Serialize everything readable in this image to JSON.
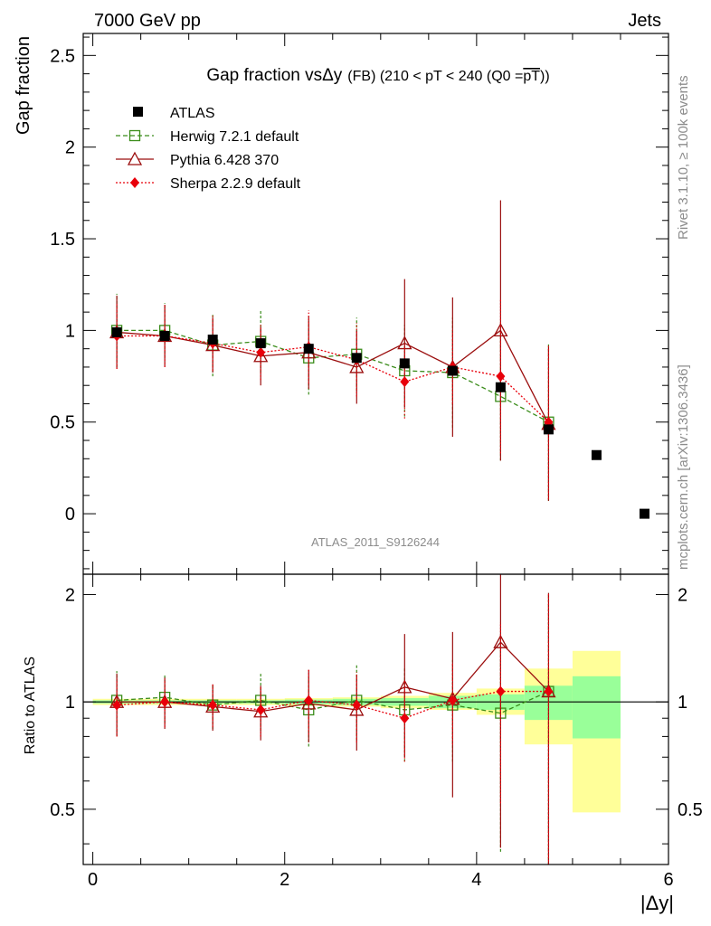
{
  "header": {
    "left_label": "7000 GeV pp",
    "right_label": "Jets",
    "side_label_top": "Rivet 3.1.10, ≥ 100k events",
    "side_label_bottom": "mcplots.cern.ch [arXiv:1306.3436]",
    "analysis_id": "ATLAS_2011_S9126244"
  },
  "chart_data": [
    {
      "type": "scatter",
      "title_main": "Gap fraction vsΔy",
      "title_sub": "(FB) (210 < pT < 240 (Q0 =",
      "title_pt": "pT",
      "title_end": "))",
      "xlabel": "|Δy|",
      "ylabel": "Gap fraction",
      "xlim": [
        -0.1,
        6.0
      ],
      "ylim": [
        -0.33,
        2.62
      ],
      "yticks": [
        0,
        0.5,
        1,
        1.5,
        2,
        2.5
      ],
      "ytick_labels": [
        "0",
        "0.5",
        "1",
        "1.5",
        "2",
        "2.5"
      ],
      "legend": [
        "ATLAS",
        "Herwig 7.2.1 default",
        "Pythia 6.428 370",
        "Sherpa 2.2.9 default"
      ],
      "series": [
        {
          "name": "ATLAS",
          "color": "#000000",
          "x": [
            0.25,
            0.75,
            1.25,
            1.75,
            2.25,
            2.75,
            3.25,
            3.75,
            4.25,
            4.75,
            5.25,
            5.75
          ],
          "y": [
            0.99,
            0.97,
            0.95,
            0.93,
            0.9,
            0.85,
            0.82,
            0.78,
            0.69,
            0.46,
            0.32,
            0.0
          ]
        },
        {
          "name": "Herwig 7.2.1 default",
          "color": "#3a8c1a",
          "x": [
            0.25,
            0.75,
            1.25,
            1.75,
            2.25,
            2.75,
            3.25,
            3.75,
            4.25,
            4.75
          ],
          "y": [
            1.0,
            1.0,
            0.92,
            0.94,
            0.85,
            0.87,
            0.78,
            0.77,
            0.64,
            0.5
          ],
          "err": [
            0.2,
            0.15,
            0.17,
            0.17,
            0.2,
            0.2,
            0.25,
            0.3,
            0.35,
            0.43
          ]
        },
        {
          "name": "Pythia 6.428 370",
          "color": "#9b0e0e",
          "x": [
            0.25,
            0.75,
            1.25,
            1.75,
            2.25,
            2.75,
            3.25,
            3.75,
            4.25,
            4.75
          ],
          "y": [
            0.99,
            0.97,
            0.92,
            0.86,
            0.88,
            0.8,
            0.93,
            0.8,
            1.0,
            0.49
          ],
          "err": [
            0.2,
            0.17,
            0.15,
            0.16,
            0.2,
            0.2,
            0.35,
            0.38,
            0.71,
            0.42
          ]
        },
        {
          "name": "Sherpa 2.2.9 default",
          "color": "#e8000b",
          "x": [
            0.25,
            0.75,
            1.25,
            1.75,
            2.25,
            2.75,
            3.25,
            3.75,
            4.25,
            4.75
          ],
          "y": [
            0.97,
            0.97,
            0.93,
            0.88,
            0.91,
            0.84,
            0.72,
            0.8,
            0.75,
            0.5
          ],
          "err": [
            0.18,
            0.17,
            0.15,
            0.15,
            0.2,
            0.2,
            0.2,
            0.2,
            0.42,
            0.42
          ]
        }
      ]
    },
    {
      "type": "scatter",
      "ylabel": "Ratio to ATLAS",
      "xlabel": "|Δy|",
      "xlim": [
        -0.1,
        6.0
      ],
      "ylim": [
        0.35,
        2.28
      ],
      "yticks": [
        0.5,
        1,
        2
      ],
      "ytick_labels": [
        "0.5",
        "1",
        "2"
      ],
      "xticks": [
        0,
        2,
        4,
        6
      ],
      "xtick_labels": [
        "0",
        "2",
        "4",
        "6"
      ],
      "bands": [
        {
          "x0": 0.0,
          "x1": 0.5,
          "inner": [
            0.99,
            1.01
          ],
          "outer": [
            0.98,
            1.02
          ]
        },
        {
          "x0": 0.5,
          "x1": 1.0,
          "inner": [
            0.99,
            1.01
          ],
          "outer": [
            0.98,
            1.02
          ]
        },
        {
          "x0": 1.0,
          "x1": 1.5,
          "inner": [
            0.99,
            1.01
          ],
          "outer": [
            0.98,
            1.02
          ]
        },
        {
          "x0": 1.5,
          "x1": 2.0,
          "inner": [
            0.99,
            1.01
          ],
          "outer": [
            0.98,
            1.02
          ]
        },
        {
          "x0": 2.0,
          "x1": 2.5,
          "inner": [
            0.985,
            1.015
          ],
          "outer": [
            0.975,
            1.025
          ]
        },
        {
          "x0": 2.5,
          "x1": 3.0,
          "inner": [
            0.98,
            1.02
          ],
          "outer": [
            0.97,
            1.03
          ]
        },
        {
          "x0": 3.0,
          "x1": 3.5,
          "inner": [
            0.975,
            1.025
          ],
          "outer": [
            0.96,
            1.04
          ]
        },
        {
          "x0": 3.5,
          "x1": 4.0,
          "inner": [
            0.96,
            1.04
          ],
          "outer": [
            0.95,
            1.06
          ]
        },
        {
          "x0": 4.0,
          "x1": 4.5,
          "inner": [
            0.95,
            1.05
          ],
          "outer": [
            0.92,
            1.09
          ]
        },
        {
          "x0": 4.5,
          "x1": 5.0,
          "inner": [
            0.89,
            1.11
          ],
          "outer": [
            0.76,
            1.24
          ]
        },
        {
          "x0": 5.0,
          "x1": 5.5,
          "inner": [
            0.79,
            1.18
          ],
          "outer": [
            0.49,
            1.39
          ]
        }
      ],
      "series": [
        {
          "name": "Herwig 7.2.1 default",
          "color": "#3a8c1a",
          "x": [
            0.25,
            0.75,
            1.25,
            1.75,
            2.25,
            2.75,
            3.25,
            3.75,
            4.25,
            4.75
          ],
          "y": [
            1.01,
            1.03,
            0.98,
            1.01,
            0.95,
            1.01,
            0.95,
            0.98,
            0.93,
            1.07
          ],
          "err_low": [
            0.21,
            0.16,
            0.14,
            0.18,
            0.2,
            0.23,
            0.27,
            0.3,
            0.55,
            0.95
          ],
          "err_high": [
            0.21,
            0.17,
            0.14,
            0.2,
            0.22,
            0.26,
            0.3,
            0.33,
            0.6,
            0.95
          ]
        },
        {
          "name": "Pythia 6.428 370",
          "color": "#9b0e0e",
          "x": [
            0.25,
            0.75,
            1.25,
            1.75,
            2.25,
            2.75,
            3.25,
            3.75,
            4.25,
            4.75
          ],
          "y": [
            1.0,
            1.0,
            0.97,
            0.94,
            0.99,
            0.95,
            1.1,
            1.02,
            1.47,
            1.07
          ],
          "err_low": [
            0.2,
            0.16,
            0.14,
            0.16,
            0.22,
            0.22,
            0.4,
            0.48,
            1.08,
            0.95
          ],
          "err_high": [
            0.2,
            0.17,
            0.15,
            0.17,
            0.24,
            0.24,
            0.45,
            0.55,
            1.2,
            0.95
          ]
        },
        {
          "name": "Sherpa 2.2.9 default",
          "color": "#e8000b",
          "x": [
            0.25,
            0.75,
            1.25,
            1.75,
            2.25,
            2.75,
            3.25,
            3.75,
            4.25,
            4.75
          ],
          "y": [
            0.98,
            1.0,
            0.98,
            0.95,
            1.01,
            0.98,
            0.9,
            1.01,
            1.07,
            1.07
          ],
          "err_low": [
            0.18,
            0.15,
            0.13,
            0.15,
            0.2,
            0.21,
            0.22,
            0.25,
            0.55,
            0.95
          ],
          "err_high": [
            0.18,
            0.16,
            0.14,
            0.16,
            0.22,
            0.23,
            0.25,
            0.27,
            0.6,
            0.95
          ]
        }
      ]
    }
  ]
}
